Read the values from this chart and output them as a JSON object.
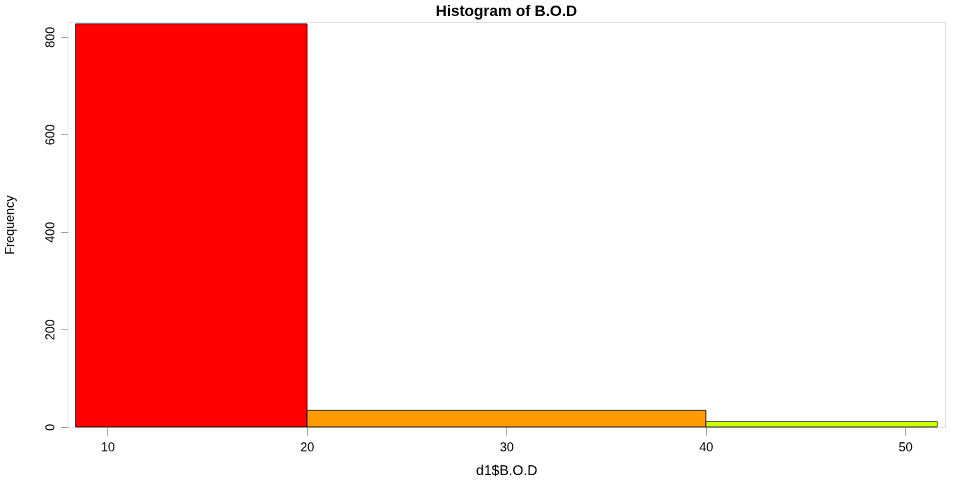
{
  "chart_data": {
    "type": "histogram",
    "title": "Histogram of B.O.D",
    "xlabel": "d1$B.O.D",
    "ylabel": "Frequency",
    "bins": [
      8.4,
      20,
      40,
      51.6
    ],
    "values": [
      827,
      34,
      11
    ],
    "colors": [
      "#ff0000",
      "#ff9900",
      "#ccff00"
    ],
    "xlim": [
      8,
      52
    ],
    "xticks": [
      10,
      20,
      30,
      40,
      50
    ],
    "ylim": [
      0,
      830
    ],
    "yticks": [
      0,
      200,
      400,
      600,
      800
    ],
    "grid": false
  }
}
